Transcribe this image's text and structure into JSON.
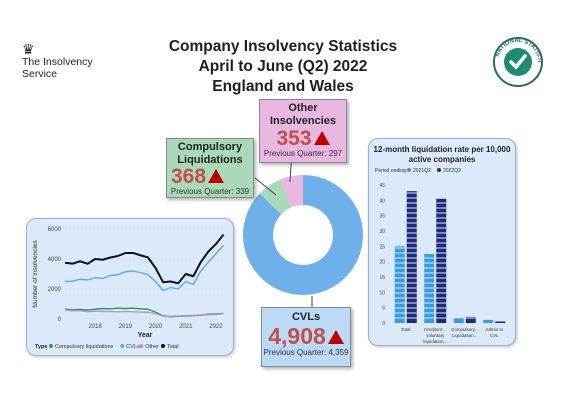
{
  "header": {
    "title_line1": "Company Insolvency Statistics",
    "title_line2": "April to June (Q2) 2022",
    "title_line3": "England and Wales"
  },
  "logo_left": {
    "org_line1": "The Insolvency",
    "org_line2": "Service"
  },
  "logo_right": {
    "text": "NATIONAL STATISTICS"
  },
  "cards": {
    "other": {
      "label_line1": "Other",
      "label_line2": "Insolvencies",
      "value": "353",
      "previous": "Previous Quarter: 297"
    },
    "compulsory": {
      "label_line1": "Compulsory",
      "label_line2": "Liquidations",
      "value": "368",
      "previous": "Previous Quarter: 339"
    },
    "cvl": {
      "label": "CVLs",
      "value": "4,908",
      "previous": "Previous Quarter: 4,359"
    }
  },
  "colors": {
    "cvl": "#70b0ea",
    "compulsory": "#a9d9b8",
    "other": "#e8b8e0",
    "q2021": "#3a9be0",
    "q2022": "#1f2a7a",
    "panel": "#dbe9f8",
    "up_arrow": "#c00000"
  },
  "chart_data": [
    {
      "type": "line",
      "x": [
        2017.0,
        2017.25,
        2017.5,
        2017.75,
        2018.0,
        2018.25,
        2018.5,
        2018.75,
        2019.0,
        2019.25,
        2019.5,
        2019.75,
        2020.0,
        2020.25,
        2020.5,
        2020.75,
        2021.0,
        2021.25,
        2021.5,
        2021.75,
        2022.0,
        2022.25
      ],
      "xticks": [
        "2018",
        "2019",
        "2020",
        "2021",
        "2022"
      ],
      "xlabel": "Year",
      "ylabel": "Number of insolvencies",
      "yticks": [
        "0",
        "2000",
        "4000",
        "6000"
      ],
      "ylim": [
        0,
        6000
      ],
      "legend_title": "Type",
      "series": [
        {
          "name": "Compulsory liquidations",
          "color": "#2e9e4e",
          "values": [
            650,
            620,
            640,
            600,
            650,
            700,
            680,
            720,
            700,
            720,
            680,
            650,
            450,
            220,
            150,
            180,
            200,
            220,
            250,
            320,
            339,
            368
          ]
        },
        {
          "name": "CVLs",
          "color": "#5aaae8",
          "values": [
            2500,
            2520,
            2650,
            2600,
            2750,
            2700,
            2900,
            2950,
            3150,
            3200,
            3100,
            2950,
            2500,
            1900,
            2100,
            2000,
            2500,
            2300,
            3200,
            3800,
            4359,
            4908
          ]
        },
        {
          "name": "Other",
          "color": "#b98ed6",
          "values": [
            600,
            550,
            560,
            480,
            520,
            500,
            500,
            480,
            500,
            480,
            460,
            450,
            350,
            200,
            180,
            200,
            220,
            240,
            260,
            290,
            297,
            353
          ]
        },
        {
          "name": "Total",
          "color": "#111111",
          "values": [
            3750,
            3690,
            3850,
            3680,
            4000,
            3950,
            4100,
            4200,
            4400,
            4400,
            4250,
            4100,
            3400,
            2450,
            2500,
            2380,
            3000,
            2850,
            3800,
            4500,
            4995,
            5629
          ]
        }
      ]
    },
    {
      "type": "pie",
      "categories": [
        "CVLs",
        "Compulsory Liquidations",
        "Other Insolvencies"
      ],
      "values": [
        4908,
        368,
        353
      ]
    },
    {
      "type": "bar",
      "title": "12-month liquidation rate per 10,000 active companies",
      "legend_title": "Period ending:",
      "categories": [
        "Total",
        "Creditors'... voluntary liquidation...",
        "Compulsory... Liquidation...",
        "Admin to CVL"
      ],
      "yticks": [
        "0",
        "5",
        "10",
        "15",
        "20",
        "25",
        "30",
        "35",
        "40",
        "45"
      ],
      "ylim": [
        0,
        45
      ],
      "series": [
        {
          "name": "2021Q2",
          "values": [
            25.0,
            22.5,
            1.5,
            1.0
          ]
        },
        {
          "name": "2022Q2",
          "values": [
            43.0,
            40.5,
            2.0,
            0.5
          ]
        }
      ]
    }
  ]
}
